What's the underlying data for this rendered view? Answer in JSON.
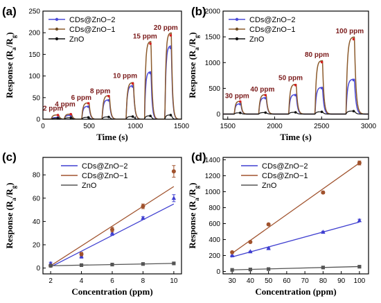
{
  "chart_data": [
    {
      "panel_label": "(a)",
      "type": "line",
      "xlabel": "Time (s)",
      "ylabel": [
        "Response (R",
        "a",
        "/R",
        "g",
        ")"
      ],
      "xlim": [
        0,
        1500
      ],
      "ylim": [
        0,
        250
      ],
      "xticks": [
        0,
        500,
        1000,
        1500
      ],
      "yticks": [
        0,
        50,
        100,
        150,
        200,
        250
      ],
      "legend": "top-left",
      "annotations": [
        {
          "text": "2 ppm",
          "x": 110,
          "y": 20
        },
        {
          "text": "4 ppm",
          "x": 240,
          "y": 30
        },
        {
          "text": "6 ppm",
          "x": 415,
          "y": 45
        },
        {
          "text": "8 ppm",
          "x": 620,
          "y": 60
        },
        {
          "text": "10 ppm",
          "x": 890,
          "y": 95
        },
        {
          "text": "15 ppm",
          "x": 1105,
          "y": 187
        },
        {
          "text": "20 ppm",
          "x": 1330,
          "y": 207
        }
      ],
      "pulses": [
        {
          "t0": 90,
          "t1": 170,
          "values": [
            4,
            10,
            2.5
          ]
        },
        {
          "t0": 230,
          "t1": 310,
          "values": [
            9,
            12,
            3.5
          ]
        },
        {
          "t0": 420,
          "t1": 500,
          "values": [
            30,
            38,
            4.5
          ]
        },
        {
          "t0": 640,
          "t1": 720,
          "values": [
            45,
            55,
            5.5
          ]
        },
        {
          "t0": 900,
          "t1": 980,
          "values": [
            78,
            85,
            6.5
          ]
        },
        {
          "t0": 1100,
          "t1": 1170,
          "values": [
            110,
            180,
            8
          ]
        },
        {
          "t0": 1320,
          "t1": 1390,
          "values": [
            170,
            200,
            10
          ]
        }
      ],
      "series": [
        {
          "name": "CDs@ZnO−2",
          "color": "#4a4ad8"
        },
        {
          "name": "CDs@ZnO−1",
          "color": "#8b5a2b"
        },
        {
          "name": "ZnO",
          "color": "#111111"
        }
      ]
    },
    {
      "panel_label": "(b)",
      "type": "line",
      "xlabel": "Time (s)",
      "ylabel": [
        "Response (R",
        "a",
        "/R",
        "g",
        ")"
      ],
      "xlim": [
        1450,
        3000
      ],
      "ylim": [
        -100,
        2000
      ],
      "xticks": [
        1500,
        2000,
        2500,
        3000
      ],
      "yticks": [
        0,
        500,
        1000,
        1500,
        2000
      ],
      "legend": "top-left",
      "annotations": [
        {
          "text": "30 ppm",
          "x": 1600,
          "y": 310
        },
        {
          "text": "40 ppm",
          "x": 1870,
          "y": 440
        },
        {
          "text": "50 ppm",
          "x": 2170,
          "y": 660
        },
        {
          "text": "80 ppm",
          "x": 2450,
          "y": 1110
        },
        {
          "text": "100 ppm",
          "x": 2800,
          "y": 1570
        }
      ],
      "pulses": [
        {
          "t0": 1570,
          "t1": 1640,
          "values": [
            200,
            250,
            25
          ]
        },
        {
          "t0": 1830,
          "t1": 1910,
          "values": [
            320,
            380,
            30
          ]
        },
        {
          "t0": 2150,
          "t1": 2230,
          "values": [
            380,
            580,
            35
          ]
        },
        {
          "t0": 2430,
          "t1": 2510,
          "values": [
            520,
            1040,
            45
          ]
        },
        {
          "t0": 2760,
          "t1": 2850,
          "values": [
            680,
            1500,
            60
          ]
        }
      ],
      "series": [
        {
          "name": "CDs@ZnO−2",
          "color": "#4a4ad8"
        },
        {
          "name": "CDs@ZnO−1",
          "color": "#8b5a2b"
        },
        {
          "name": "ZnO",
          "color": "#111111"
        }
      ]
    },
    {
      "panel_label": "(c)",
      "type": "scatter",
      "xlabel": "Concentration (ppm)",
      "ylabel": [
        "Response (R",
        "a",
        "/R",
        "g",
        ")"
      ],
      "xlim": [
        1.5,
        10.5
      ],
      "ylim": [
        -5,
        95
      ],
      "xticks": [
        2,
        4,
        6,
        8,
        10
      ],
      "yticks": [
        0,
        20,
        40,
        60,
        80
      ],
      "legend": "top-left",
      "x": [
        2,
        4,
        6,
        8,
        10
      ],
      "series": [
        {
          "name": "CDs@ZnO−2",
          "color": "#3f3fd0",
          "values": [
            4,
            10,
            30,
            43,
            60
          ],
          "err": [
            1,
            1.5,
            2,
            1,
            3
          ],
          "fit": [
            1,
            55
          ]
        },
        {
          "name": "CDs@ZnO−1",
          "color": "#a0522d",
          "values": [
            2,
            12,
            33,
            53,
            83
          ],
          "err": [
            1,
            1.5,
            2,
            2,
            5
          ],
          "fit": [
            2,
            70
          ]
        },
        {
          "name": "ZnO",
          "color": "#555555",
          "values": [
            2,
            2.5,
            3,
            3.5,
            4
          ],
          "err": [
            0.3,
            0.3,
            0.3,
            0.3,
            0.4
          ],
          "fit": [
            2,
            4
          ]
        }
      ]
    },
    {
      "panel_label": "(d)",
      "type": "scatter",
      "xlabel": "Concentration (ppm)",
      "ylabel": [
        "Response (R",
        "a",
        "/R",
        "g",
        ")"
      ],
      "xlim": [
        25,
        105
      ],
      "ylim": [
        -30,
        1430
      ],
      "xticks": [
        30,
        40,
        50,
        60,
        70,
        80,
        90,
        100
      ],
      "yticks": [
        0,
        200,
        400,
        600,
        800,
        1000,
        1200,
        1400
      ],
      "legend": "top-left",
      "x": [
        30,
        40,
        50,
        80,
        100
      ],
      "series": [
        {
          "name": "CDs@ZnO−2",
          "color": "#3f3fd0",
          "values": [
            200,
            250,
            290,
            495,
            640
          ],
          "err": [
            5,
            5,
            8,
            10,
            15
          ],
          "fit": [
            180,
            620
          ]
        },
        {
          "name": "CDs@ZnO−1",
          "color": "#a0522d",
          "values": [
            240,
            370,
            590,
            990,
            1360
          ],
          "err": [
            8,
            10,
            12,
            15,
            25
          ],
          "fit": [
            220,
            1360
          ]
        },
        {
          "name": "ZnO",
          "color": "#555555",
          "values": [
            20,
            25,
            30,
            50,
            60
          ],
          "err": [
            2,
            2,
            2,
            3,
            3
          ],
          "fit": [
            20,
            62
          ]
        }
      ]
    }
  ]
}
